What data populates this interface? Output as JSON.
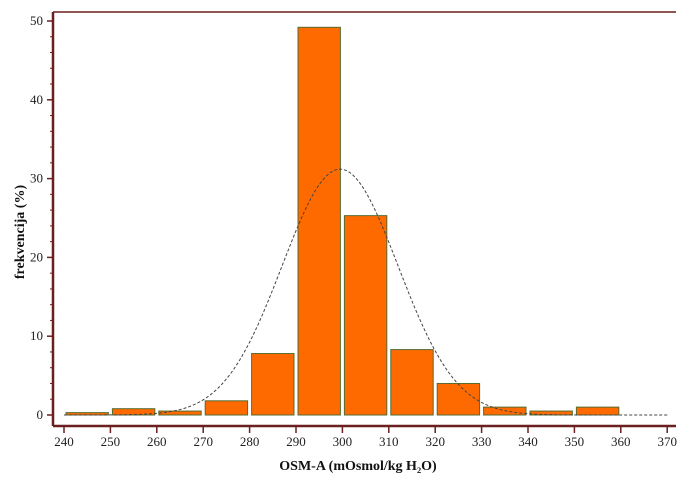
{
  "chart_data": {
    "type": "bar",
    "xlabel": "OSM-A (mOsmol/kg H₂O)",
    "ylabel": "frekvencija (%)",
    "xlim": [
      240,
      370
    ],
    "ylim": [
      0,
      52
    ],
    "x_ticks": [
      "240",
      "250",
      "260",
      "270",
      "280",
      "290",
      "300",
      "310",
      "320",
      "330",
      "340",
      "350",
      "360",
      "370"
    ],
    "y_ticks": [
      "0",
      "10",
      "20",
      "30",
      "40",
      "50"
    ],
    "bins": [
      {
        "from": 240,
        "to": 250,
        "value": 0.3
      },
      {
        "from": 250,
        "to": 260,
        "value": 0.8
      },
      {
        "from": 260,
        "to": 270,
        "value": 0.5
      },
      {
        "from": 270,
        "to": 280,
        "value": 1.8
      },
      {
        "from": 280,
        "to": 290,
        "value": 7.8
      },
      {
        "from": 290,
        "to": 300,
        "value": 49.2
      },
      {
        "from": 300,
        "to": 310,
        "value": 25.3
      },
      {
        "from": 310,
        "to": 320,
        "value": 8.3
      },
      {
        "from": 320,
        "to": 330,
        "value": 4.0
      },
      {
        "from": 330,
        "to": 340,
        "value": 1.0
      },
      {
        "from": 340,
        "to": 350,
        "value": 0.5
      },
      {
        "from": 350,
        "to": 360,
        "value": 1.0
      }
    ],
    "normal_curve": {
      "mean": 299.5,
      "sd": 12.5,
      "peak": 31.2,
      "style": "dashed"
    },
    "grid": false,
    "colors": {
      "bar_fill": "#ff6a00",
      "bar_stroke": "#556b2f",
      "axis": "#6b1f1f",
      "curve": "#444444"
    }
  }
}
